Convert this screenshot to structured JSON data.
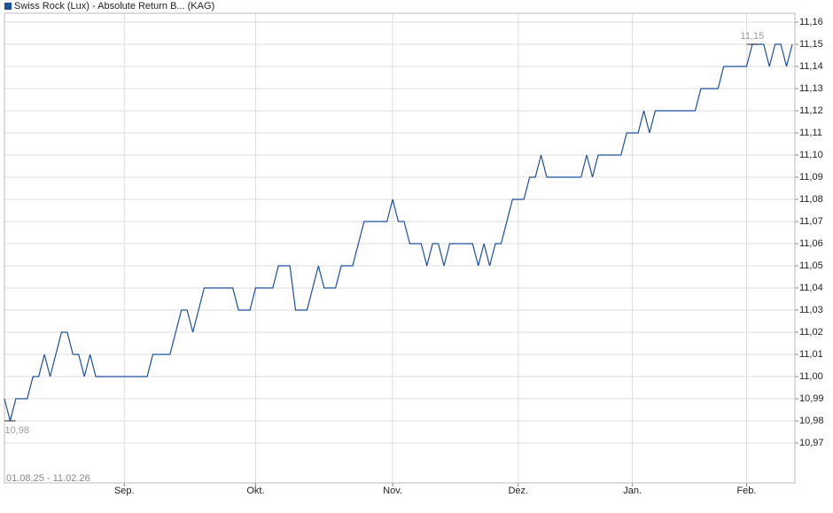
{
  "chart_data": {
    "type": "line",
    "legend": "Swiss Rock (Lux) - Absolute Return B... (KAG)",
    "date_range": "01.08.25 - 11.02.26",
    "max_label": "11,15",
    "min_label": "10,98",
    "categories": [
      null,
      null,
      null,
      null,
      null,
      null,
      null,
      null,
      null,
      null,
      null,
      null,
      null,
      null,
      null,
      null,
      null,
      null,
      null,
      null,
      null,
      "Sep.",
      null,
      null,
      null,
      null,
      null,
      null,
      null,
      null,
      null,
      null,
      null,
      null,
      null,
      null,
      null,
      null,
      null,
      null,
      null,
      null,
      null,
      null,
      "Okt.",
      null,
      null,
      null,
      null,
      null,
      null,
      null,
      null,
      null,
      null,
      null,
      null,
      null,
      null,
      null,
      null,
      null,
      null,
      null,
      null,
      null,
      null,
      null,
      "Nov.",
      null,
      null,
      null,
      null,
      null,
      null,
      null,
      null,
      null,
      null,
      null,
      null,
      null,
      null,
      null,
      null,
      null,
      null,
      null,
      null,
      null,
      "Dez.",
      null,
      null,
      null,
      null,
      null,
      null,
      null,
      null,
      null,
      null,
      null,
      null,
      null,
      null,
      null,
      null,
      null,
      null,
      null,
      "Jan.",
      null,
      null,
      null,
      null,
      null,
      null,
      null,
      null,
      null,
      null,
      null,
      null,
      null,
      null,
      null,
      null,
      null,
      null,
      null,
      "Feb.",
      null,
      null,
      null,
      null,
      null,
      null,
      null,
      null
    ],
    "series": [
      {
        "name": "Swiss Rock (Lux) - Absolute Return B... (KAG)",
        "color": "#1c4f9c",
        "values": [
          10.99,
          10.98,
          10.99,
          10.99,
          10.99,
          11.0,
          11.0,
          11.01,
          11.0,
          11.01,
          11.02,
          11.02,
          11.01,
          11.01,
          11.0,
          11.01,
          11.0,
          11.0,
          11.0,
          11.0,
          11.0,
          11.0,
          11.0,
          11.0,
          11.0,
          11.0,
          11.01,
          11.01,
          11.01,
          11.01,
          11.02,
          11.03,
          11.03,
          11.02,
          11.03,
          11.04,
          11.04,
          11.04,
          11.04,
          11.04,
          11.04,
          11.03,
          11.03,
          11.03,
          11.04,
          11.04,
          11.04,
          11.04,
          11.05,
          11.05,
          11.05,
          11.03,
          11.03,
          11.03,
          11.04,
          11.05,
          11.04,
          11.04,
          11.04,
          11.05,
          11.05,
          11.05,
          11.06,
          11.07,
          11.07,
          11.07,
          11.07,
          11.07,
          11.08,
          11.07,
          11.07,
          11.06,
          11.06,
          11.06,
          11.05,
          11.06,
          11.06,
          11.05,
          11.06,
          11.06,
          11.06,
          11.06,
          11.06,
          11.05,
          11.06,
          11.05,
          11.06,
          11.06,
          11.07,
          11.08,
          11.08,
          11.08,
          11.09,
          11.09,
          11.1,
          11.09,
          11.09,
          11.09,
          11.09,
          11.09,
          11.09,
          11.09,
          11.1,
          11.09,
          11.1,
          11.1,
          11.1,
          11.1,
          11.1,
          11.11,
          11.11,
          11.11,
          11.12,
          11.11,
          11.12,
          11.12,
          11.12,
          11.12,
          11.12,
          11.12,
          11.12,
          11.12,
          11.13,
          11.13,
          11.13,
          11.13,
          11.14,
          11.14,
          11.14,
          11.14,
          11.14,
          11.15,
          11.15,
          11.15,
          11.14,
          11.15,
          11.15,
          11.14,
          11.15
        ]
      }
    ],
    "ylim": [
      10.952,
      11.164
    ],
    "yticks": [
      {
        "value": 10.97,
        "label": "10,97"
      },
      {
        "value": 10.98,
        "label": "10,98"
      },
      {
        "value": 10.99,
        "label": "10,99"
      },
      {
        "value": 11.0,
        "label": "11,00"
      },
      {
        "value": 11.01,
        "label": "11,01"
      },
      {
        "value": 11.02,
        "label": "11,02"
      },
      {
        "value": 11.03,
        "label": "11,03"
      },
      {
        "value": 11.04,
        "label": "11,04"
      },
      {
        "value": 11.05,
        "label": "11,05"
      },
      {
        "value": 11.06,
        "label": "11,06"
      },
      {
        "value": 11.07,
        "label": "11,07"
      },
      {
        "value": 11.08,
        "label": "11,08"
      },
      {
        "value": 11.09,
        "label": "11,09"
      },
      {
        "value": 11.1,
        "label": "11,10"
      },
      {
        "value": 11.11,
        "label": "11,11"
      },
      {
        "value": 11.12,
        "label": "11,12"
      },
      {
        "value": 11.13,
        "label": "11,13"
      },
      {
        "value": 11.14,
        "label": "11,14"
      },
      {
        "value": 11.15,
        "label": "11,15"
      },
      {
        "value": 11.16,
        "label": "11,16"
      }
    ],
    "grid": true
  }
}
